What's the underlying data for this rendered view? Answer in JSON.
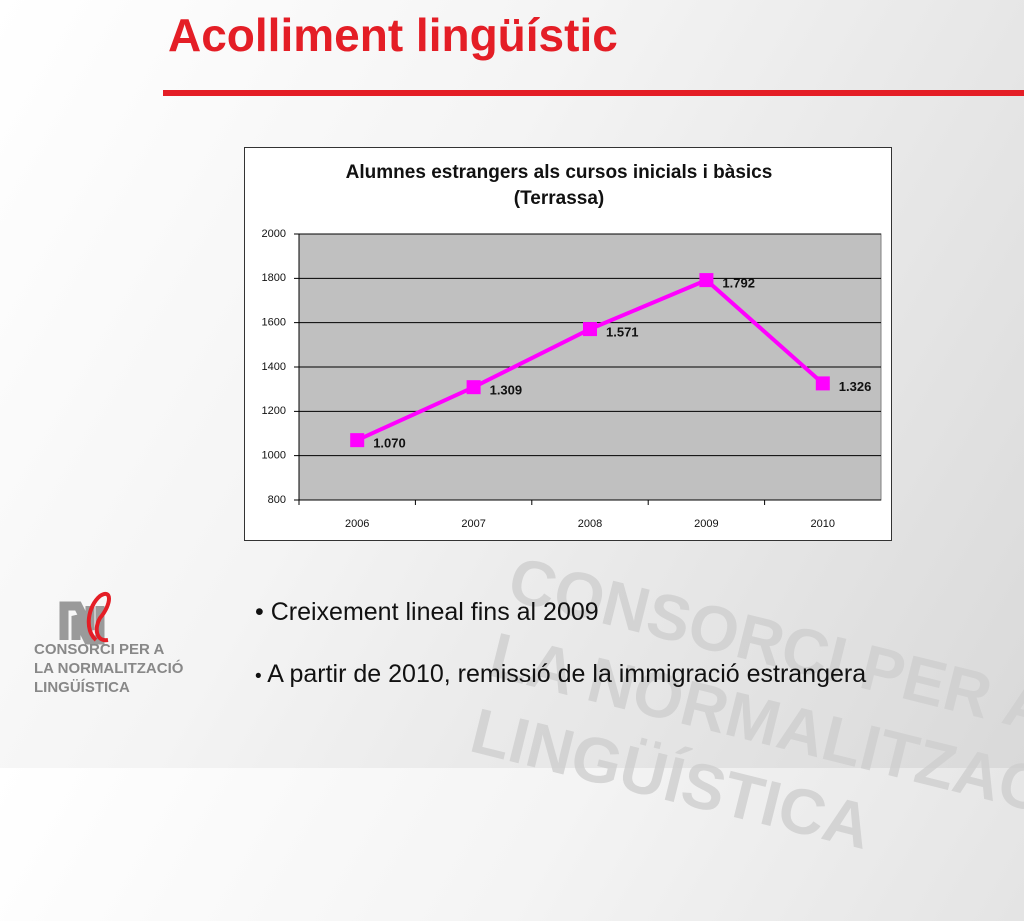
{
  "slide": {
    "title": "Acolliment lingüístic",
    "bullets": [
      "Creixement lineal fins al 2009",
      "A partir de 2010, remissió de la immigració estrangera"
    ],
    "logo": [
      "CONSORCI PER A",
      "LA NORMALITZACIÓ",
      "LINGÜÍSTICA"
    ]
  },
  "chart_data": {
    "type": "line",
    "title": "Alumnes estrangers als cursos inicials i bàsics (Terrassa)",
    "categories": [
      "2006",
      "2007",
      "2008",
      "2009",
      "2010"
    ],
    "series": [
      {
        "color": "#ff00ff",
        "values": [
          1070,
          1309,
          1571,
          1792,
          1326
        ],
        "value_labels": [
          "1.070",
          "1.309",
          "1.571",
          "1.792",
          "1.326"
        ]
      }
    ],
    "ylim": [
      800,
      2000
    ],
    "yticks": [
      800,
      1000,
      1200,
      1400,
      1600,
      1800,
      2000
    ],
    "grid": true
  }
}
